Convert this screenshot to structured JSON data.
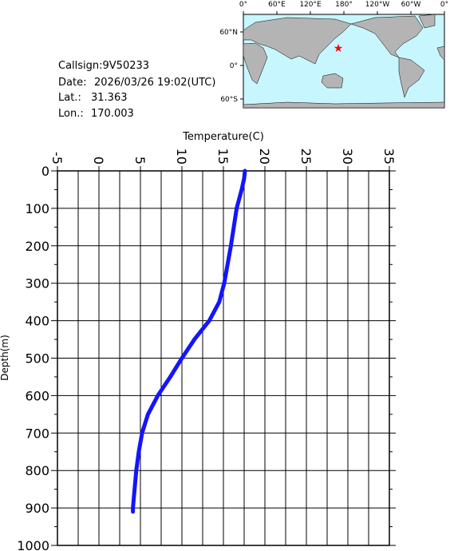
{
  "station": {
    "callsign": "Callsign:9V50233",
    "date_label": "Date:",
    "date": "2026/03/26 19:02(UTC)",
    "lat_label": "Lat.:",
    "lat": 31.363,
    "lon_label": "Lon.:",
    "lon": 170.003
  },
  "map": {
    "marker_color": "#ff0000",
    "lonticks": [
      {
        "value": 0,
        "label": "0°"
      },
      {
        "value": 60,
        "label": "60°E"
      },
      {
        "value": 120,
        "label": "120°E"
      },
      {
        "value": 180,
        "label": "180°"
      },
      {
        "value": 240,
        "label": "120°W"
      },
      {
        "value": 300,
        "label": "60°W"
      },
      {
        "value": 360,
        "label": "0°"
      }
    ],
    "latticks": [
      {
        "value": 60,
        "label": "60°N"
      },
      {
        "value": 0,
        "label": "0°"
      },
      {
        "value": -60,
        "label": "60°S"
      }
    ]
  },
  "chart_data": {
    "type": "profile",
    "xlabel": "Temperature(C)",
    "ylabel": "Depth(m)",
    "color": "#1414ff",
    "depth": [
      0,
      20,
      50,
      100,
      150,
      200,
      250,
      300,
      350,
      400,
      450,
      500,
      550,
      600,
      650,
      700,
      750,
      800,
      850,
      900,
      910
    ],
    "values": [
      17.6,
      17.5,
      17.2,
      16.6,
      16.25,
      15.9,
      15.5,
      15.1,
      14.5,
      13.3,
      11.5,
      10.0,
      8.6,
      7.1,
      5.9,
      5.2,
      4.8,
      4.5,
      4.3,
      4.1,
      4.1
    ],
    "xlim": [
      -5,
      35
    ],
    "ylim": [
      0,
      1000
    ],
    "xticks": [
      -5,
      0,
      5,
      10,
      15,
      20,
      25,
      30,
      35
    ],
    "xminorticks": [
      -2.5,
      2.5,
      7.5,
      12.5,
      17.5,
      22.5,
      27.5,
      32.5
    ],
    "yticks": [
      0,
      100,
      200,
      300,
      400,
      500,
      600,
      700,
      800,
      900,
      1000
    ],
    "yminorticks": [
      50,
      150,
      250,
      350,
      450,
      550,
      650,
      750,
      850,
      950
    ],
    "grid": true
  }
}
